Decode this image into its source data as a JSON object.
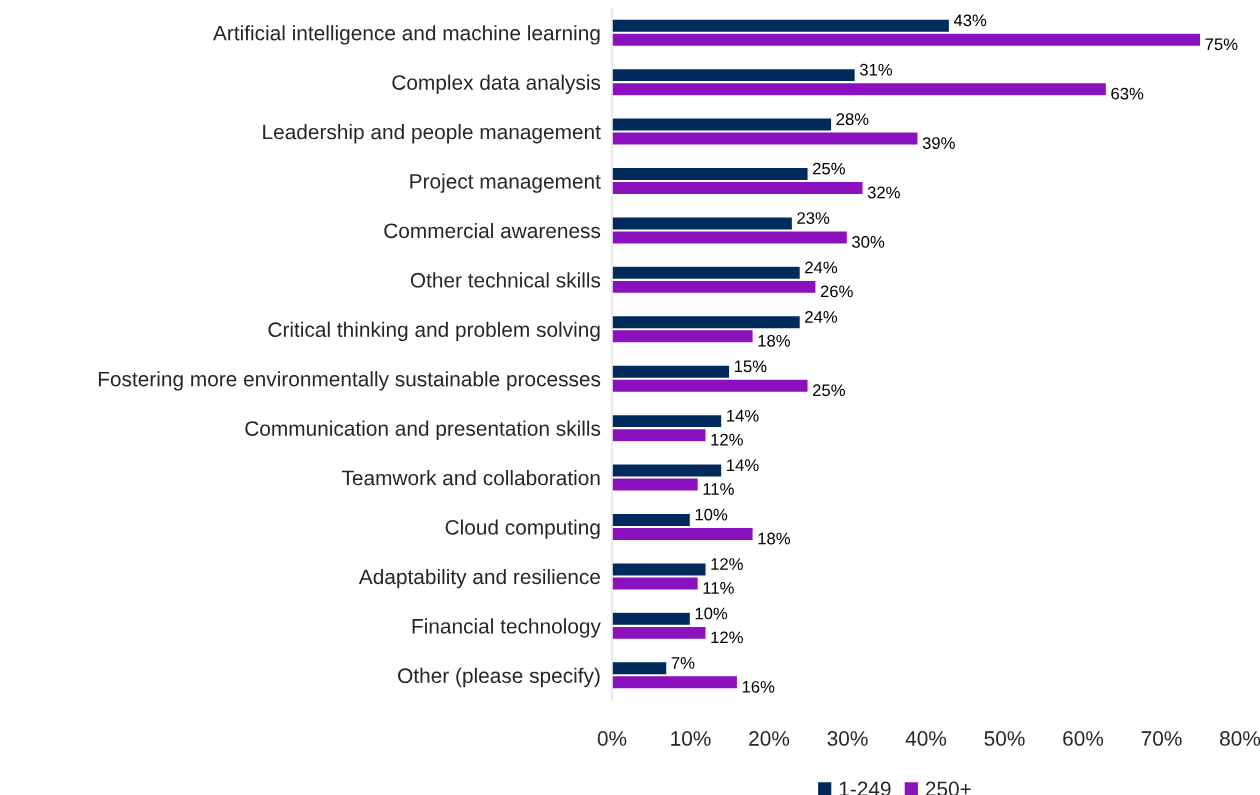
{
  "chart_data": {
    "type": "bar",
    "orientation": "horizontal",
    "categories": [
      "Artificial intelligence and machine learning",
      "Complex data analysis",
      "Leadership and people management",
      "Project management",
      "Commercial awareness",
      "Other technical skills",
      "Critical thinking and problem solving",
      "Fostering more environmentally sustainable processes",
      "Communication and presentation skills",
      "Teamwork and collaboration",
      "Cloud computing",
      "Adaptability and resilience",
      "Financial technology",
      "Other (please specify)"
    ],
    "series": [
      {
        "name": "1-249",
        "color": "#002a5c",
        "values": [
          43,
          31,
          28,
          25,
          23,
          24,
          24,
          15,
          14,
          14,
          10,
          12,
          10,
          7
        ],
        "value_labels": [
          "43%",
          "31%",
          "28%",
          "25%",
          "23%",
          "24%",
          "24%",
          "15%",
          "14%",
          "14%",
          "10%",
          "12%",
          "10%",
          "7%"
        ]
      },
      {
        "name": "250+",
        "color": "#8b10be",
        "values": [
          75,
          63,
          39,
          32,
          30,
          26,
          18,
          25,
          12,
          11,
          18,
          11,
          12,
          16
        ],
        "value_labels": [
          "75%",
          "63%",
          "39%",
          "32%",
          "30%",
          "26%",
          "18%",
          "25%",
          "12%",
          "11%",
          "18%",
          "11%",
          "12%",
          "16%"
        ]
      }
    ],
    "xlim": [
      0,
      80
    ],
    "xticks": [
      {
        "value": 0,
        "label": "0%"
      },
      {
        "value": 10,
        "label": "10%"
      },
      {
        "value": 20,
        "label": "20%"
      },
      {
        "value": 30,
        "label": "30%"
      },
      {
        "value": 40,
        "label": "40%"
      },
      {
        "value": 50,
        "label": "50%"
      },
      {
        "value": 60,
        "label": "60%"
      },
      {
        "value": 70,
        "label": "70%"
      },
      {
        "value": 80,
        "label": "80%"
      }
    ],
    "grid": false,
    "legend": "bottom"
  }
}
